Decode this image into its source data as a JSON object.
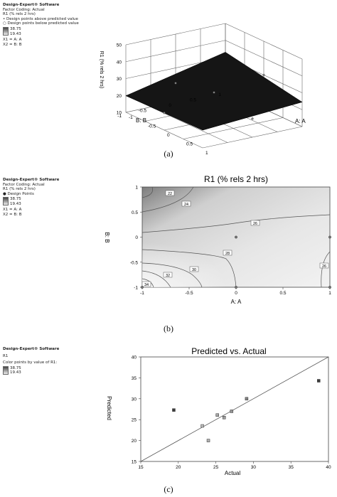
{
  "panels": [
    {
      "caption": "(a)",
      "sidebar": {
        "title": "Design-Expert® Software",
        "coding": "Factor Coding: Actual",
        "response": "R1 (% rels 2 hrs)",
        "legend": [
          "• Design points above predicted value",
          "○ Design points below predicted value"
        ],
        "range_high": "38.75",
        "range_low": "19.43",
        "x1": "X1 = A: A",
        "x2": "X2 = B: B"
      },
      "chart_data": {
        "type": "surface",
        "title": "",
        "xlabel": "A: A",
        "ylabel": "B: B",
        "zlabel": "R1 (% rels 2 hrs)",
        "xticks": [
          "-1",
          "-0.5",
          "0",
          "0.5",
          "1"
        ],
        "yticks": [
          "-1",
          "-0.5",
          "0",
          "0.5",
          "1"
        ],
        "zticks": [
          "10",
          "20",
          "30",
          "40",
          "50"
        ],
        "zlim": [
          10,
          50
        ],
        "surface_color": "#111111"
      }
    },
    {
      "caption": "(b)",
      "sidebar": {
        "title": "Design-Expert® Software",
        "coding": "Factor Coding: Actual",
        "response": "R1 (% rels 2 hrs)",
        "legend": [
          "● Design Points"
        ],
        "range_high": "38.75",
        "range_low": "19.43",
        "x1": "X1 = A: A",
        "x2": "X2 = B: B"
      },
      "chart_data": {
        "type": "contour",
        "title": "R1 (% rels 2 hrs)",
        "xlabel": "A: A",
        "ylabel": "B: B",
        "xticks": [
          "-1",
          "-0.5",
          "0",
          "0.5",
          "1"
        ],
        "yticks": [
          "-1",
          "-0.5",
          "0",
          "0.5",
          "1"
        ],
        "xlim": [
          -1,
          1
        ],
        "ylim": [
          -1,
          1
        ],
        "contour_labels": [
          "22",
          "24",
          "26",
          "26",
          "28",
          "30",
          "32",
          "34"
        ],
        "design_points": [
          {
            "x": 0,
            "y": 0
          },
          {
            "x": 0,
            "y": -1
          },
          {
            "x": 1,
            "y": 0
          },
          {
            "x": -1,
            "y": -1
          },
          {
            "x": 1,
            "y": -1
          }
        ]
      }
    },
    {
      "caption": "(c)",
      "sidebar": {
        "title": "Design-Expert® Software",
        "response": "R1",
        "color_by": "Color points by value of R1:",
        "range_high": "38.75",
        "range_low": "19.43"
      },
      "chart_data": {
        "type": "scatter",
        "title": "Predicted vs. Actual",
        "xlabel": "Actual",
        "ylabel": "Predicted",
        "xlim": [
          15,
          40
        ],
        "ylim": [
          15,
          40
        ],
        "xticks": [
          "15",
          "20",
          "25",
          "30",
          "35",
          "40"
        ],
        "yticks": [
          "15",
          "20",
          "25",
          "30",
          "35",
          "40"
        ],
        "points": [
          {
            "x": 19.4,
            "y": 27.3
          },
          {
            "x": 23.2,
            "y": 23.5
          },
          {
            "x": 24.0,
            "y": 20.0
          },
          {
            "x": 25.2,
            "y": 26.1
          },
          {
            "x": 26.1,
            "y": 25.5
          },
          {
            "x": 27.1,
            "y": 27.0
          },
          {
            "x": 29.1,
            "y": 30.0
          },
          {
            "x": 38.7,
            "y": 34.3
          }
        ],
        "reference_line": [
          [
            15,
            15
          ],
          [
            40,
            40
          ]
        ]
      }
    }
  ]
}
